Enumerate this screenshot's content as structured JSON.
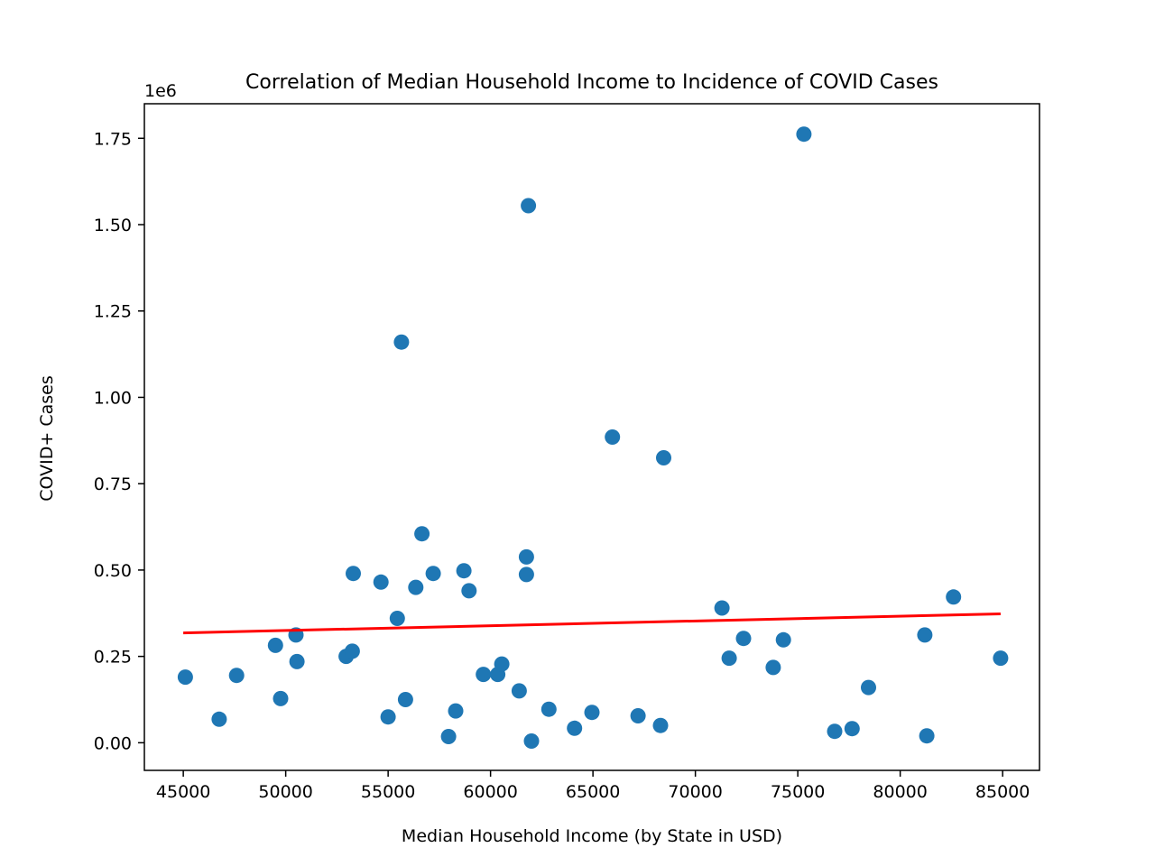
{
  "chart_data": {
    "type": "scatter",
    "title": "Correlation of Median Household Income to Incidence of COVID Cases",
    "xlabel": "Median Household Income (by State in USD)",
    "ylabel": "COVID+ Cases",
    "y_offset_label": "1e6",
    "xlim": [
      43100,
      86800
    ],
    "ylim": [
      -80000,
      1850000
    ],
    "xticks": [
      45000,
      50000,
      55000,
      60000,
      65000,
      70000,
      75000,
      80000,
      85000
    ],
    "yticks": [
      0,
      250000,
      500000,
      750000,
      1000000,
      1250000,
      1500000,
      1750000
    ],
    "ytick_labels": [
      "0.00",
      "0.25",
      "0.50",
      "0.75",
      "1.00",
      "1.25",
      "1.50",
      "1.75"
    ],
    "grid": false,
    "legend": "none",
    "point_color": "#1f77b4",
    "line_color": "#ff0000",
    "series": [
      {
        "kind": "scatter",
        "x": [
          45100,
          46750,
          47600,
          49500,
          49750,
          50500,
          50550,
          52950,
          53250,
          53300,
          54650,
          55000,
          55450,
          55650,
          55850,
          56350,
          56650,
          57200,
          57950,
          58300,
          58700,
          58950,
          59650,
          60350,
          60550,
          61400,
          61750,
          61750,
          61850,
          62000,
          62850,
          64100,
          64950,
          65950,
          67200,
          68300,
          68450,
          71300,
          71650,
          72350,
          73800,
          74300,
          75300,
          76800,
          77650,
          78450,
          81200,
          81300,
          82600,
          84900
        ],
        "y": [
          190000,
          68000,
          195000,
          282000,
          128000,
          312000,
          235000,
          250000,
          265000,
          490000,
          465000,
          75000,
          360000,
          1160000,
          125000,
          450000,
          605000,
          490000,
          18000,
          92000,
          498000,
          440000,
          198000,
          198000,
          228000,
          150000,
          538000,
          487000,
          1555000,
          5000,
          97000,
          42000,
          88000,
          885000,
          78000,
          50000,
          825000,
          390000,
          245000,
          302000,
          218000,
          298000,
          1762000,
          33000,
          41000,
          160000,
          312000,
          20000,
          422000,
          245000
        ]
      },
      {
        "kind": "line",
        "x": [
          45000,
          84900
        ],
        "y": [
          318000,
          373000
        ]
      }
    ]
  }
}
